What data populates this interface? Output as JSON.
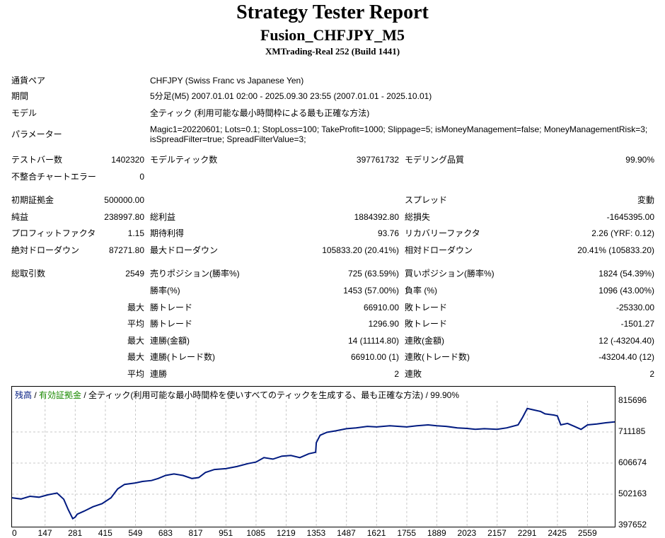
{
  "header": {
    "title": "Strategy Tester Report",
    "subtitle": "Fusion_CHFJPY_M5",
    "build": "XMTrading-Real 252 (Build 1441)"
  },
  "settings": [
    {
      "label": "通貨ペア",
      "value": "CHFJPY (Swiss Franc vs Japanese Yen)"
    },
    {
      "label": "期間",
      "value": "5分足(M5) 2007.01.01 02:00 - 2025.09.30 23:55 (2007.01.01 - 2025.10.01)"
    },
    {
      "label": "モデル",
      "value": "全ティック (利用可能な最小時間枠による最も正確な方法)"
    },
    {
      "label": "パラメーター",
      "value": "Magic1=20220601; Lots=0.1; StopLoss=100; TakeProfit=1000; Slippage=5; isMoneyManagement=false; MoneyManagementRisk=3;",
      "value2": "isSpreadFilter=true; SpreadFilterValue=3;"
    }
  ],
  "stats": {
    "bars_label": "テストバー数",
    "bars": "1402320",
    "ticks_label": "モデルティック数",
    "ticks": "397761732",
    "quality_label": "モデリング品質",
    "quality": "99.90%",
    "mismatch_label": "不整合チャートエラー",
    "mismatch": "0",
    "deposit_label": "初期証拠金",
    "deposit": "500000.00",
    "spread_label": "スプレッド",
    "spread": "変動",
    "net_label": "純益",
    "net": "238997.80",
    "gross_profit_label": "総利益",
    "gross_profit": "1884392.80",
    "gross_loss_label": "総損失",
    "gross_loss": "-1645395.00",
    "pf_label": "プロフィットファクタ",
    "pf": "1.15",
    "exp_label": "期待利得",
    "exp": "93.76",
    "rf_label": "リカバリーファクタ",
    "rf": "2.26 (YRF: 0.12)",
    "abs_dd_label": "絶対ドローダウン",
    "abs_dd": "87271.80",
    "max_dd_label": "最大ドローダウン",
    "max_dd": "105833.20 (20.41%)",
    "rel_dd_label": "相対ドローダウン",
    "rel_dd": "20.41% (105833.20)",
    "trades_label": "総取引数",
    "trades": "2549",
    "short_label": "売りポジション(勝率%)",
    "short": "725 (63.59%)",
    "long_label": "買いポジション(勝率%)",
    "long": "1824 (54.39%)",
    "win_rate_label": "勝率(%)",
    "win_rate": "1453 (57.00%)",
    "loss_rate_label": "負率 (%)",
    "loss_rate": "1096 (43.00%)",
    "max_label": "最大",
    "avg_label": "平均",
    "win_trade_label": "勝トレード",
    "loss_trade_label": "敗トレード",
    "max_win": "66910.00",
    "max_loss": "-25330.00",
    "avg_win": "1296.90",
    "avg_loss": "-1501.27",
    "cons_wins_money_label": "連勝(金額)",
    "cons_wins_money": "14 (11114.80)",
    "cons_losses_money_label": "連敗(金額)",
    "cons_losses_money": "12 (-43204.40)",
    "cons_profit_label": "連勝(トレード数)",
    "cons_profit": "66910.00 (1)",
    "cons_loss_label": "連敗(トレード数)",
    "cons_loss": "-43204.40 (12)",
    "avg_cons_wins_label": "連勝",
    "avg_cons_wins": "2",
    "avg_cons_losses_label": "連敗",
    "avg_cons_losses": "2"
  },
  "chart_data": {
    "type": "line",
    "legend_balance": "残高",
    "legend_sep1": " / ",
    "legend_equity": "有効証拠金",
    "legend_rest": " / 全ティック(利用可能な最小時間枠を使いすべてのティックを生成する、最も正確な方法) / 99.90%",
    "color_balance": "#001a80",
    "color_equity": "#1a8a00",
    "xticks": [
      "0",
      "147",
      "281",
      "415",
      "549",
      "683",
      "817",
      "951",
      "1085",
      "1219",
      "1353",
      "1487",
      "1621",
      "1755",
      "1889",
      "2023",
      "2157",
      "2291",
      "2425",
      "2559"
    ],
    "yticks": [
      "815696",
      "711185",
      "606674",
      "502163",
      "397652"
    ],
    "ylim": [
      397652,
      815696
    ],
    "xlim": [
      0,
      2680
    ],
    "series": [
      {
        "x": [
          0,
          40,
          80,
          120,
          160,
          200,
          230,
          250,
          270,
          281,
          290,
          320,
          360,
          400,
          440,
          470,
          500,
          549,
          580,
          620,
          650,
          683,
          720,
          760,
          800,
          830,
          860,
          900,
          951,
          1000,
          1050,
          1085,
          1120,
          1160,
          1200,
          1240,
          1280,
          1320,
          1350,
          1353,
          1370,
          1400,
          1440,
          1487,
          1530,
          1580,
          1621,
          1680,
          1720,
          1755,
          1800,
          1850,
          1889,
          1930,
          1980,
          2023,
          2060,
          2100,
          2157,
          2200,
          2250,
          2270,
          2291,
          2320,
          2350,
          2370,
          2390,
          2410,
          2425,
          2440,
          2470,
          2500,
          2530,
          2559,
          2600,
          2640,
          2680
        ],
        "y": [
          490000,
          486000,
          495000,
          492000,
          500000,
          506000,
          485000,
          450000,
          420000,
          425000,
          435000,
          445000,
          460000,
          470000,
          490000,
          520000,
          535000,
          540000,
          545000,
          548000,
          555000,
          565000,
          570000,
          565000,
          555000,
          558000,
          575000,
          585000,
          588000,
          595000,
          605000,
          610000,
          625000,
          620000,
          630000,
          632000,
          625000,
          638000,
          643000,
          675000,
          700000,
          710000,
          715000,
          722000,
          725000,
          730000,
          728000,
          732000,
          730000,
          728000,
          732000,
          735000,
          732000,
          730000,
          725000,
          723000,
          720000,
          722000,
          720000,
          725000,
          735000,
          760000,
          790000,
          785000,
          780000,
          772000,
          770000,
          768000,
          765000,
          735000,
          740000,
          730000,
          720000,
          735000,
          738000,
          742000,
          745000
        ]
      }
    ]
  }
}
